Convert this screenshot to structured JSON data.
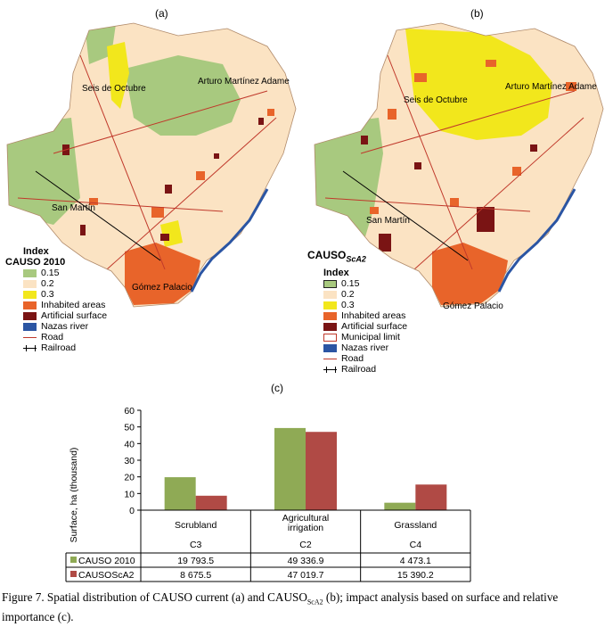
{
  "panels": {
    "a_label": "(a)",
    "b_label": "(b)",
    "c_label": "(c)"
  },
  "map_a": {
    "places": [
      "Seis de Octubre",
      "Arturo Martínez Adame",
      "San Martín",
      "Gómez Palacio"
    ],
    "legend_title_1": "Index",
    "legend_title_2": "CAUSO 2010",
    "items": [
      {
        "label": "0.15",
        "color": "#a8c97f"
      },
      {
        "label": "0.2",
        "color": "#fbe3c3"
      },
      {
        "label": "0.3",
        "color": "#f2e71c"
      },
      {
        "label": "Inhabited areas",
        "color": "#e8642a"
      },
      {
        "label": "Artificial surface",
        "color": "#7a1414"
      },
      {
        "label": "Nazas river",
        "color": "#2b55a3"
      }
    ],
    "road": "Road",
    "railroad": "Railroad"
  },
  "map_b": {
    "places": [
      "Seis de Octubre",
      "Arturo Martínez Adame",
      "San Martín",
      "Gómez Palacio"
    ],
    "legend_title_main": "CAUSO",
    "legend_title_sub": "ScA2",
    "legend_title_2": "Index",
    "items": [
      {
        "label": "0.15",
        "color": "#a8c97f"
      },
      {
        "label": "0.2",
        "color": "#fbe3c3"
      },
      {
        "label": "0.3",
        "color": "#f2e71c"
      },
      {
        "label": "Inhabited areas",
        "color": "#e8642a"
      },
      {
        "label": "Artificial surface",
        "color": "#7a1414"
      },
      {
        "label": "Municipal limit",
        "color": "#ffffff"
      },
      {
        "label": "Nazas river",
        "color": "#2b55a3"
      }
    ],
    "road": "Road",
    "railroad": "Railroad"
  },
  "chart_data": {
    "type": "bar",
    "title": "",
    "xlabel": "",
    "ylabel": "Surface, ha (thousand)",
    "ylim": [
      0,
      60
    ],
    "yticks": [
      0,
      10,
      20,
      30,
      40,
      50,
      60
    ],
    "categories": [
      {
        "name_lines": [
          "Scrubland"
        ],
        "code": "C3"
      },
      {
        "name_lines": [
          "Agricultural",
          "irrigation"
        ],
        "code": "C2"
      },
      {
        "name_lines": [
          "Grassland"
        ],
        "code": "C4"
      }
    ],
    "series": [
      {
        "name": "CAUSO 2010",
        "color": "#8faa55",
        "values": [
          19.7935,
          49.3369,
          4.4731
        ],
        "labels": [
          "19 793.5",
          "49 336.9",
          "4 473.1"
        ]
      },
      {
        "name": "CAUSOScA2",
        "color": "#b04a45",
        "values": [
          8.6755,
          47.0197,
          15.3902
        ],
        "labels": [
          "8 675.5",
          "47 019.7",
          "15 390.2"
        ]
      }
    ]
  },
  "caption": {
    "part1": "Figure 7. Spatial distribution of CAUSO current (a) and CAUSO",
    "sub": "ScA2",
    "part2": " (b); impact analysis based on surface and relative importance (c)."
  }
}
